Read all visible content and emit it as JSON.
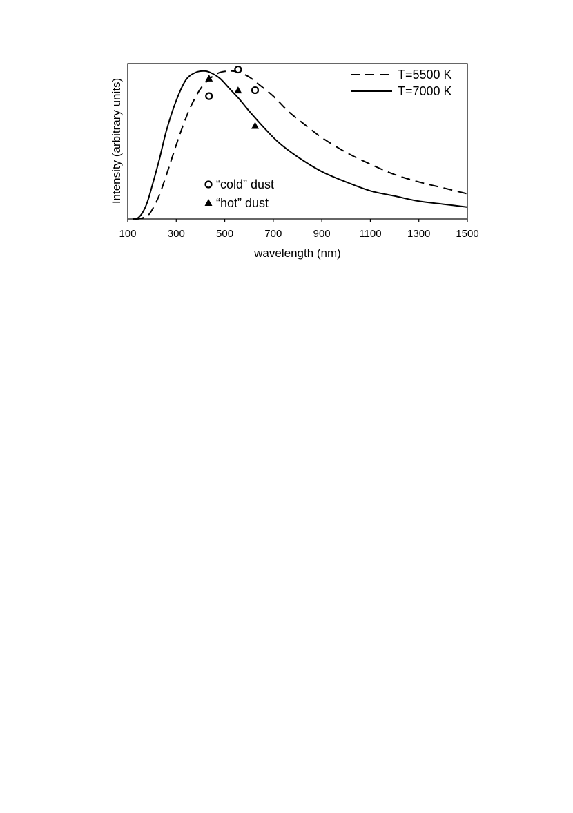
{
  "chart_data": {
    "type": "line",
    "title": "",
    "xlabel": "wavelength (nm)",
    "ylabel": "Intensity (arbitrary units)",
    "xlim": [
      100,
      1500
    ],
    "ylim": [
      0,
      1.05
    ],
    "x_ticks": [
      100,
      300,
      500,
      700,
      900,
      1100,
      1300,
      1500
    ],
    "x_tick_labels": [
      "100",
      "300",
      "500",
      "700",
      "900",
      "1100",
      "1300",
      "1500"
    ],
    "y_tick_labels": [],
    "grid": false,
    "legend_position": "top-right",
    "series": [
      {
        "name": "T=5500 K",
        "style": "dashed",
        "color": "#000000",
        "temperature_K": 5500,
        "x": [
          130,
          150,
          180,
          200,
          230,
          260,
          300,
          330,
          360,
          400,
          440,
          480,
          527,
          560,
          600,
          640,
          700,
          760,
          820,
          900,
          1000,
          1100,
          1200,
          1300,
          1400,
          1500
        ],
        "y": [
          0.0,
          0.002,
          0.02,
          0.06,
          0.16,
          0.3,
          0.5,
          0.64,
          0.76,
          0.88,
          0.95,
          0.99,
          1.0,
          0.99,
          0.96,
          0.91,
          0.83,
          0.73,
          0.65,
          0.55,
          0.45,
          0.37,
          0.3,
          0.25,
          0.21,
          0.17
        ]
      },
      {
        "name": "T=7000 K",
        "style": "solid",
        "color": "#000000",
        "temperature_K": 7000,
        "x": [
          120,
          140,
          160,
          180,
          200,
          230,
          260,
          300,
          340,
          380,
          414,
          440,
          480,
          520,
          560,
          600,
          660,
          720,
          800,
          900,
          1000,
          1100,
          1200,
          1300,
          1400,
          1500
        ],
        "y": [
          0.0,
          0.005,
          0.04,
          0.11,
          0.22,
          0.4,
          0.6,
          0.8,
          0.94,
          0.99,
          1.0,
          0.99,
          0.95,
          0.88,
          0.81,
          0.73,
          0.62,
          0.52,
          0.42,
          0.32,
          0.25,
          0.19,
          0.155,
          0.12,
          0.1,
          0.08
        ]
      }
    ],
    "points": [
      {
        "name": "“cold” dust",
        "marker": "open-circle",
        "x": [
          435,
          555,
          625
        ],
        "y": [
          0.83,
          1.01,
          0.87
        ]
      },
      {
        "name": "“hot” dust",
        "marker": "filled-triangle",
        "x": [
          435,
          555,
          625
        ],
        "y": [
          0.95,
          0.87,
          0.63
        ]
      }
    ]
  }
}
